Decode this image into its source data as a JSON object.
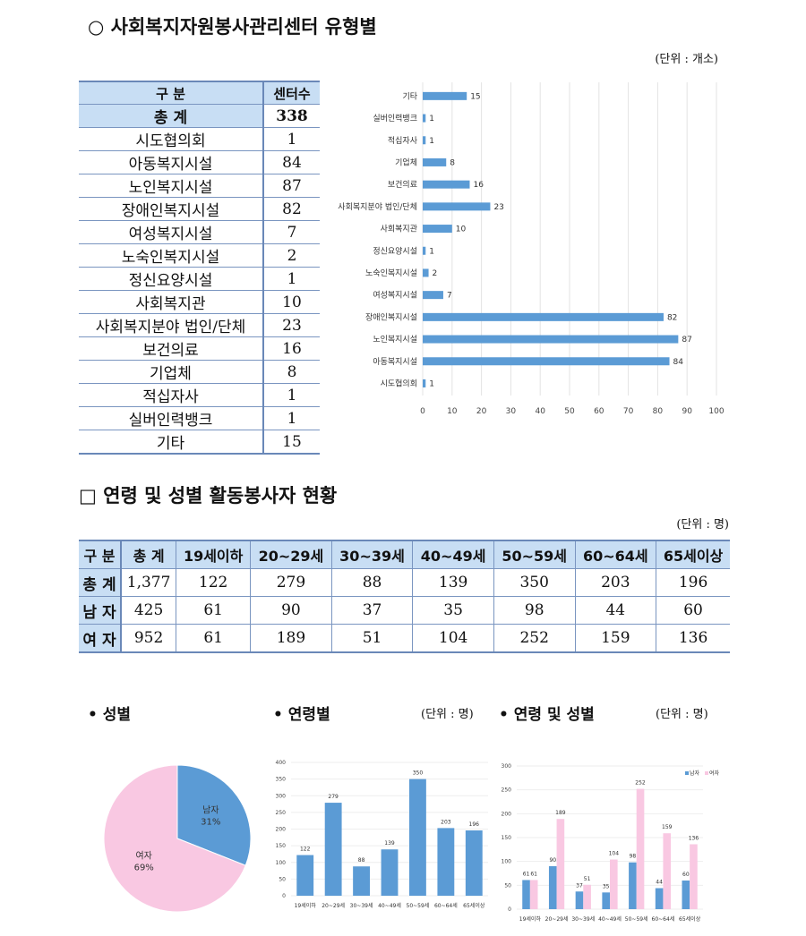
{
  "section1": {
    "title": "○ 사회복지자원봉사관리센터 유형별",
    "unit": "(단위 : 개소)",
    "table": {
      "headers": [
        "구  분",
        "센터수"
      ],
      "rows": [
        [
          "총  계",
          "338"
        ],
        [
          "시도협의회",
          "1"
        ],
        [
          "아동복지시설",
          "84"
        ],
        [
          "노인복지시설",
          "87"
        ],
        [
          "장애인복지시설",
          "82"
        ],
        [
          "여성복지시설",
          "7"
        ],
        [
          "노숙인복지시설",
          "2"
        ],
        [
          "정신요양시설",
          "1"
        ],
        [
          "사회복지관",
          "10"
        ],
        [
          "사회복지분야 법인/단체",
          "23"
        ],
        [
          "보건의료",
          "16"
        ],
        [
          "기업체",
          "8"
        ],
        [
          "적십자사",
          "1"
        ],
        [
          "실버인력뱅크",
          "1"
        ],
        [
          "기타",
          "15"
        ]
      ]
    }
  },
  "section2": {
    "title": "□ 연령 및 성별 활동봉사자 현황",
    "unit": "(단위 : 명)",
    "table": {
      "headers": [
        "구 분",
        "총 계",
        "19세이하",
        "20~29세",
        "30~39세",
        "40~49세",
        "50~59세",
        "60~64세",
        "65세이상"
      ],
      "rows": [
        [
          "총 계",
          "1,377",
          "122",
          "279",
          "88",
          "139",
          "350",
          "203",
          "196"
        ],
        [
          "남 자",
          "425",
          "61",
          "90",
          "37",
          "35",
          "98",
          "44",
          "60"
        ],
        [
          "여 자",
          "952",
          "61",
          "189",
          "51",
          "104",
          "252",
          "159",
          "136"
        ]
      ]
    }
  },
  "labels": {
    "gender": "• 성별",
    "age": "• 연령별",
    "age_unit": "(단위 : 명)",
    "age_gender": "• 연령 및 성별",
    "age_gender_unit": "(단위 : 명)"
  },
  "colors": {
    "blue": "#5b9bd5",
    "pink": "#f9c8e2"
  },
  "chart_data": [
    {
      "type": "bar",
      "orientation": "horizontal",
      "categories": [
        "기타",
        "실버인력뱅크",
        "적십자사",
        "기업체",
        "보건의료",
        "사회복지분야 법인/단체",
        "사회복지관",
        "정신요양시설",
        "노숙인복지시설",
        "여성복지시설",
        "장애인복지시설",
        "노인복지시설",
        "아동복지시설",
        "시도협의회"
      ],
      "values": [
        15,
        1,
        1,
        8,
        16,
        23,
        10,
        1,
        2,
        7,
        82,
        87,
        84,
        1
      ],
      "xlim": [
        0,
        100
      ],
      "xticks": [
        0,
        10,
        20,
        30,
        40,
        50,
        60,
        70,
        80,
        90,
        100
      ],
      "grid": true
    },
    {
      "type": "pie",
      "slices": [
        {
          "name": "남자",
          "value": 31,
          "label": "31%"
        },
        {
          "name": "여자",
          "value": 69,
          "label": "69%"
        }
      ]
    },
    {
      "type": "bar",
      "categories": [
        "19세이하",
        "20~29세",
        "30~39세",
        "40~49세",
        "50~59세",
        "60~64세",
        "65세이상"
      ],
      "values": [
        122,
        279,
        88,
        139,
        350,
        203,
        196
      ],
      "ylim": [
        0,
        400
      ],
      "yticks": [
        0,
        50,
        100,
        150,
        200,
        250,
        300,
        350,
        400
      ],
      "grid": true
    },
    {
      "type": "bar",
      "categories": [
        "19세이하",
        "20~29세",
        "30~39세",
        "40~49세",
        "50~59세",
        "60~64세",
        "65세이상"
      ],
      "series": [
        {
          "name": "남자",
          "values": [
            61,
            90,
            37,
            35,
            98,
            44,
            60
          ]
        },
        {
          "name": "여자",
          "values": [
            61,
            189,
            51,
            104,
            252,
            159,
            136
          ]
        }
      ],
      "ylim": [
        0,
        300
      ],
      "yticks": [
        0,
        50,
        100,
        150,
        200,
        250,
        300
      ],
      "legend": "top-right",
      "grid": true
    }
  ]
}
